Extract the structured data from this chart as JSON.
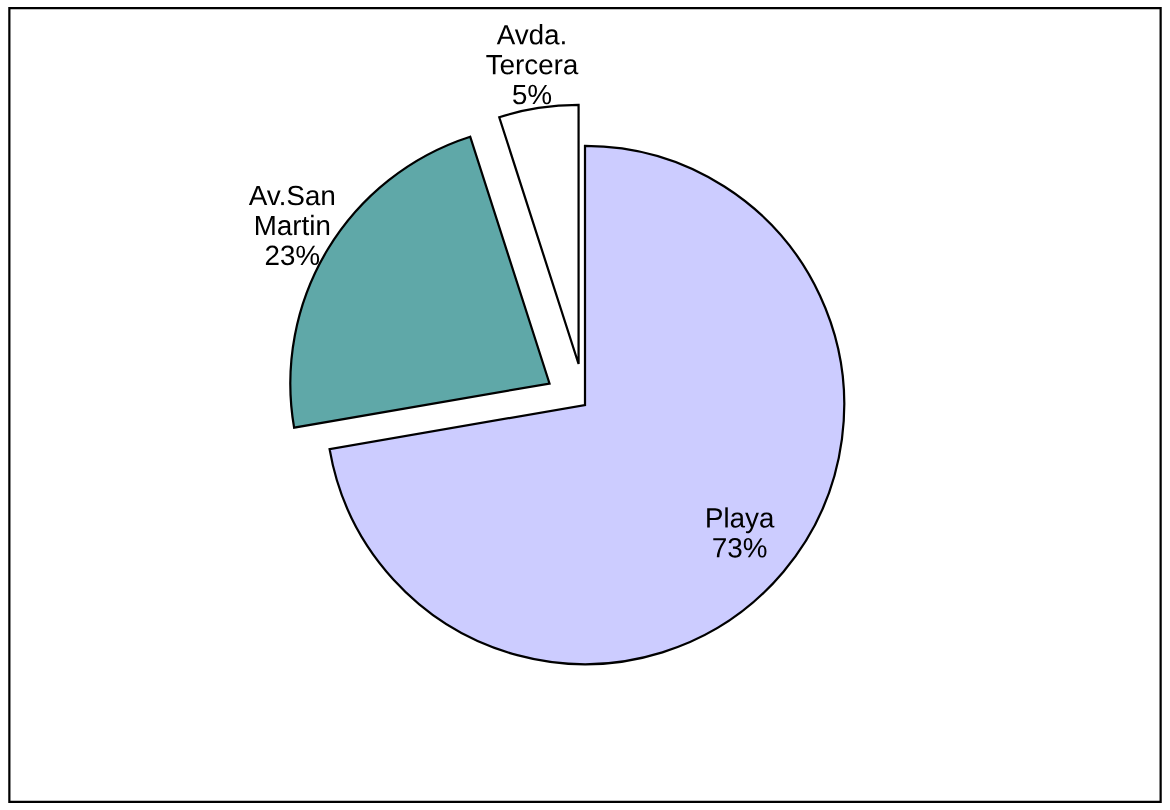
{
  "chart_data": {
    "type": "pie",
    "categories": [
      "Playa",
      "Av.San\nMartin",
      "Avda.\nTercera"
    ],
    "values": [
      73,
      23,
      5
    ],
    "value_labels": [
      "73%",
      "23%",
      "5%"
    ],
    "colors": [
      "#ccccff",
      "#5fa8a8",
      "#ffffff"
    ]
  }
}
